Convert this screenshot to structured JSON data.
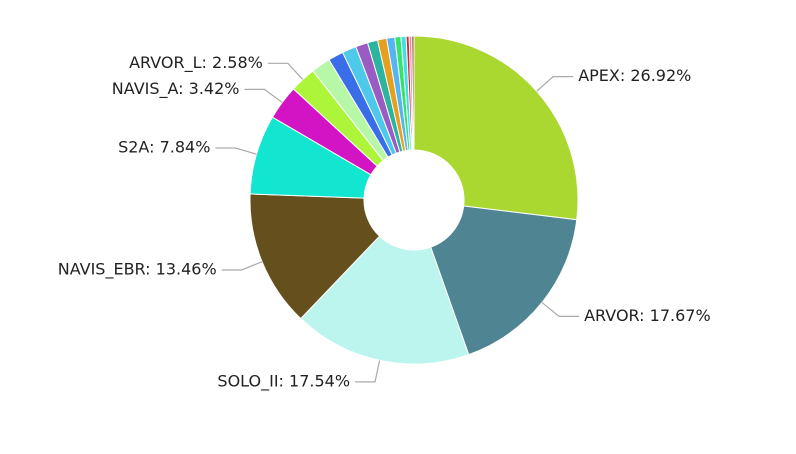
{
  "chart_data": {
    "type": "donut",
    "values": [
      26.92,
      17.67,
      17.54,
      13.46,
      7.84,
      3.42,
      2.58,
      1.9,
      1.5,
      1.4,
      1.2,
      1.0,
      0.9,
      0.8,
      0.6,
      0.5,
      0.3,
      0.25,
      0.22
    ],
    "value_labels": [
      "APEX: 26.92%",
      "ARVOR: 17.67%",
      "SOLO_II: 17.54%",
      "NAVIS_EBR: 13.46%",
      "S2A: 7.84%",
      "NAVIS_A: 3.42%",
      "ARVOR_L: 2.58%",
      null,
      null,
      null,
      null,
      null,
      null,
      null,
      null,
      null,
      null,
      null,
      null
    ],
    "colors": [
      "#aad831",
      "#4f8592",
      "#bcf5ee",
      "#654f1d",
      "#12e6d0",
      "#d214c5",
      "#adf53a",
      "#b6f7a8",
      "#3a6ee8",
      "#4ec9ea",
      "#9a5cc2",
      "#2bb59e",
      "#e5a020",
      "#56b4f2",
      "#33e36a",
      "#3fe0e6",
      "#d9262a",
      "#f07fb0",
      "#8a5a2b"
    ]
  }
}
